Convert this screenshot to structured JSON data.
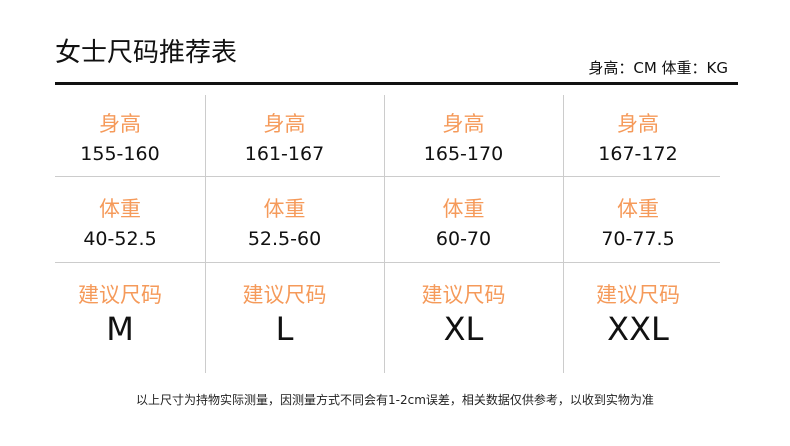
{
  "title": "女士尺码推荐表",
  "units": "身高：CM 体重：KG",
  "accent_color": "#f59a5a",
  "rows": [
    {
      "label": "身高",
      "values": [
        "155-160",
        "161-167",
        "165-170",
        "167-172"
      ]
    },
    {
      "label": "体重",
      "values": [
        "40-52.5",
        "52.5-60",
        "60-70",
        "70-77.5"
      ]
    },
    {
      "label": "建议尺码",
      "values": [
        "M",
        "L",
        "XL",
        "XXL"
      ]
    }
  ],
  "note": "以上尺寸为持物实际测量，因测量方式不同会有1-2cm误差，相关数据仅供参考，以收到实物为准"
}
